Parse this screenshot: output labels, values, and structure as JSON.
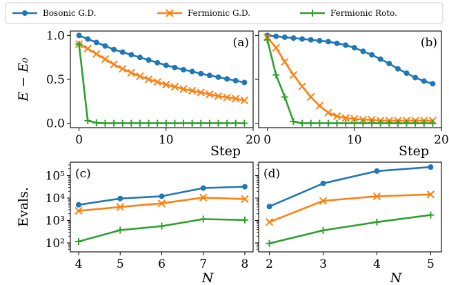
{
  "colors": {
    "bosonic": "#1f77b4",
    "fermionic_gd": "#ff7f0e",
    "fermionic_roto": "#2ca02c"
  },
  "legend": {
    "placement": "top-center",
    "entries": [
      {
        "label": "Bosonic G.D.",
        "marker": "circle",
        "color": "#1f77b4"
      },
      {
        "label": "Fermionic G.D.",
        "marker": "x",
        "color": "#ff7f0e"
      },
      {
        "label": "Fermionic Roto.",
        "marker": "plus",
        "color": "#2ca02c"
      }
    ]
  },
  "chart_data": [
    {
      "type": "line",
      "panel": "(a)",
      "xlabel": "Step",
      "ylabel": "E − E₀",
      "xlim": [
        -1,
        20
      ],
      "ylim": [
        -0.05,
        1.05
      ],
      "xticks": [
        0,
        10,
        20
      ],
      "yticks": [
        "0.0",
        "0.5",
        "1.0"
      ],
      "x": [
        0,
        1,
        2,
        3,
        4,
        5,
        6,
        7,
        8,
        9,
        10,
        11,
        12,
        13,
        14,
        15,
        16,
        17,
        18,
        19
      ],
      "series": [
        {
          "name": "Bosonic G.D.",
          "values": [
            1.0,
            0.96,
            0.92,
            0.88,
            0.84,
            0.81,
            0.78,
            0.75,
            0.72,
            0.69,
            0.66,
            0.635,
            0.61,
            0.59,
            0.565,
            0.545,
            0.525,
            0.505,
            0.485,
            0.465
          ]
        },
        {
          "name": "Fermionic G.D.",
          "values": [
            0.9,
            0.85,
            0.79,
            0.73,
            0.67,
            0.62,
            0.575,
            0.535,
            0.5,
            0.47,
            0.44,
            0.415,
            0.39,
            0.37,
            0.35,
            0.33,
            0.31,
            0.295,
            0.28,
            0.26
          ]
        },
        {
          "name": "Fermionic Roto.",
          "values": [
            0.9,
            0.03,
            0.005,
            0.0,
            0.0,
            0.0,
            0.0,
            0.0,
            0.0,
            0.0,
            0.0,
            0.0,
            0.0,
            0.0,
            0.0,
            0.0,
            0.0,
            0.0,
            0.0,
            0.0
          ]
        }
      ]
    },
    {
      "type": "line",
      "panel": "(b)",
      "xlabel": "Step",
      "ylabel": "",
      "xlim": [
        -1,
        20
      ],
      "ylim": [
        -0.05,
        1.05
      ],
      "xticks": [
        0,
        10,
        20
      ],
      "yticks": [
        "",
        "",
        ""
      ],
      "x": [
        0,
        1,
        2,
        3,
        4,
        5,
        6,
        7,
        8,
        9,
        10,
        11,
        12,
        13,
        14,
        15,
        16,
        17,
        18,
        19
      ],
      "series": [
        {
          "name": "Bosonic G.D.",
          "values": [
            1.0,
            0.99,
            0.98,
            0.97,
            0.96,
            0.95,
            0.94,
            0.93,
            0.91,
            0.89,
            0.86,
            0.82,
            0.78,
            0.73,
            0.68,
            0.62,
            0.57,
            0.52,
            0.48,
            0.45
          ]
        },
        {
          "name": "Fermionic G.D.",
          "values": [
            0.98,
            0.86,
            0.7,
            0.55,
            0.42,
            0.3,
            0.2,
            0.12,
            0.08,
            0.06,
            0.05,
            0.04,
            0.04,
            0.03,
            0.03,
            0.03,
            0.03,
            0.03,
            0.03,
            0.03
          ]
        },
        {
          "name": "Fermionic Roto.",
          "values": [
            0.95,
            0.55,
            0.3,
            0.02,
            0.0,
            0.0,
            0.0,
            0.0,
            0.0,
            0.0,
            0.0,
            0.0,
            0.0,
            0.0,
            0.0,
            0.0,
            0.0,
            0.0,
            0.0,
            0.0
          ]
        }
      ]
    },
    {
      "type": "line",
      "panel": "(c)",
      "xlabel": "N",
      "ylabel": "Evals.",
      "yscale": "log",
      "xlim": [
        3.8,
        8.2
      ],
      "ylim_exp": [
        1.6,
        5.6
      ],
      "xticks": [
        4,
        5,
        6,
        7,
        8
      ],
      "yticks": [
        "10²",
        "10³",
        "10⁴",
        "10⁵"
      ],
      "x": [
        4,
        5,
        6,
        7,
        8
      ],
      "series": [
        {
          "name": "Bosonic G.D.",
          "values": [
            5000,
            9500,
            12000,
            28000,
            32000
          ]
        },
        {
          "name": "Fermionic G.D.",
          "values": [
            2700,
            4000,
            5800,
            10500,
            9000
          ]
        },
        {
          "name": "Fermionic Roto.",
          "values": [
            115,
            370,
            560,
            1150,
            1050
          ]
        }
      ]
    },
    {
      "type": "line",
      "panel": "(d)",
      "xlabel": "N",
      "ylabel": "",
      "yscale": "log",
      "xlim": [
        1.8,
        5.2
      ],
      "ylim_exp": [
        1.6,
        5.6
      ],
      "xticks": [
        2,
        3,
        4,
        5
      ],
      "yticks": [
        "",
        "",
        "",
        ""
      ],
      "x": [
        2,
        3,
        4,
        5
      ],
      "series": [
        {
          "name": "Bosonic G.D.",
          "values": [
            4200,
            45000,
            160000,
            240000
          ]
        },
        {
          "name": "Fermionic G.D.",
          "values": [
            850,
            7500,
            12000,
            14500
          ]
        },
        {
          "name": "Fermionic Roto.",
          "values": [
            95,
            360,
            850,
            1750
          ]
        }
      ]
    }
  ]
}
